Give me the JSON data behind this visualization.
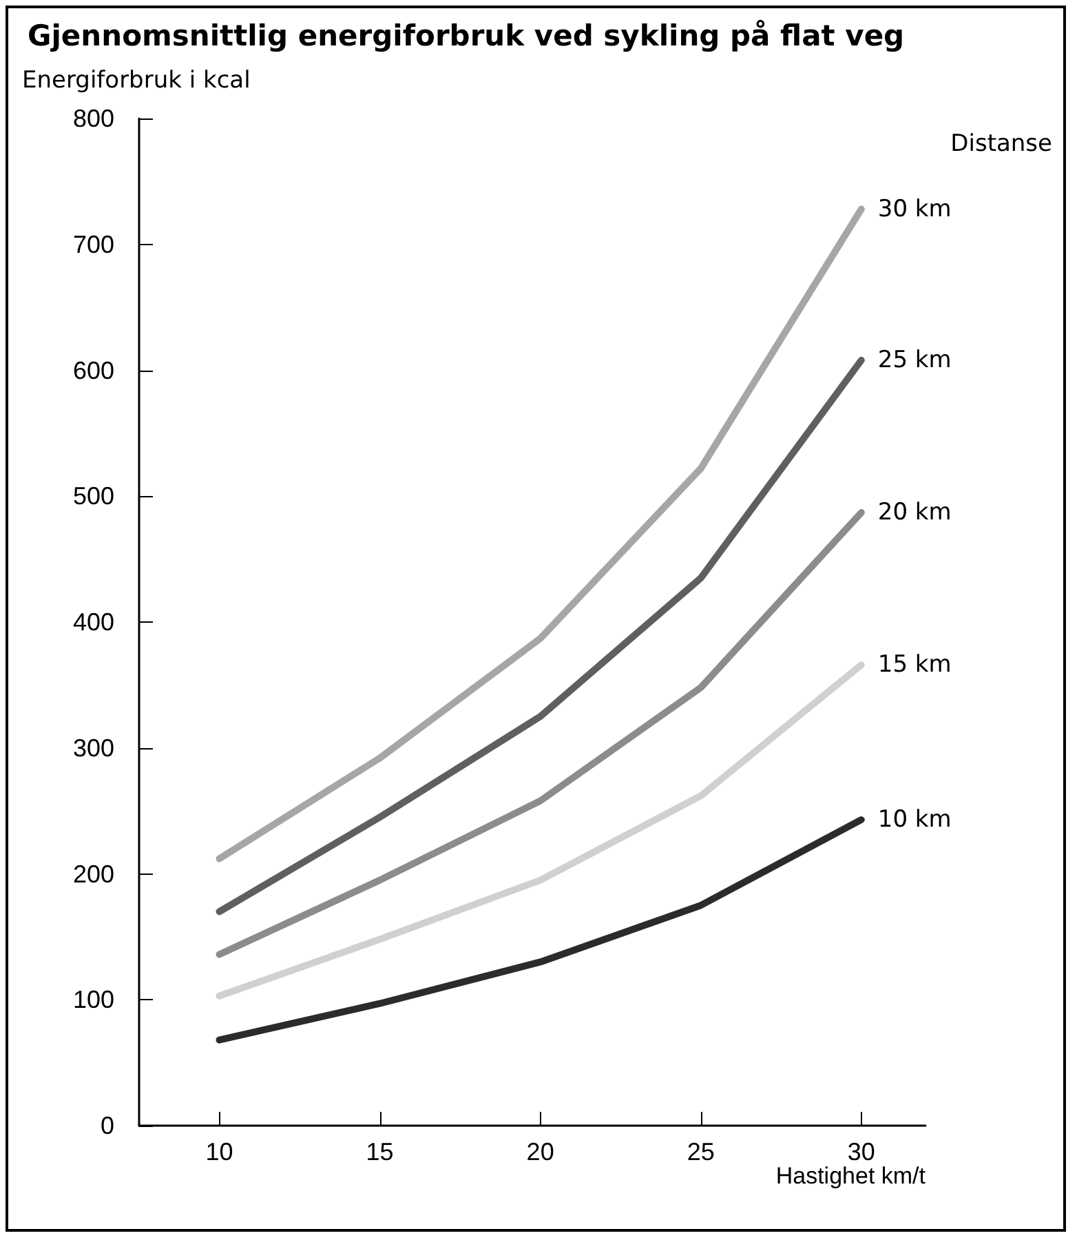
{
  "chart_data": {
    "type": "line",
    "title": "Gjennomsnittlig energiforbruk ved sykling på flat veg",
    "xlabel": "Hastighet km/t",
    "ylabel": "Energiforbruk i kcal",
    "legend_title": "Distanse",
    "x": [
      10,
      15,
      20,
      25,
      30
    ],
    "series": [
      {
        "name": "30 km",
        "color": "#a6a6a6",
        "values": [
          212,
          292,
          387,
          522,
          728
        ]
      },
      {
        "name": "25 km",
        "color": "#5f5f5f",
        "values": [
          170,
          245,
          325,
          435,
          608
        ]
      },
      {
        "name": "20 km",
        "color": "#8c8c8c",
        "values": [
          136,
          195,
          258,
          348,
          487
        ]
      },
      {
        "name": "15 km",
        "color": "#d0d0d0",
        "values": [
          103,
          148,
          195,
          262,
          366
        ]
      },
      {
        "name": "10 km",
        "color": "#2b2b2b",
        "values": [
          68,
          97,
          130,
          175,
          243
        ]
      }
    ],
    "xlim": [
      7.5,
      32
    ],
    "xticks": [
      10,
      15,
      20,
      25,
      30
    ],
    "ylim": [
      0,
      800
    ],
    "yticks": [
      0,
      100,
      200,
      300,
      400,
      500,
      600,
      700,
      800
    ],
    "grid": false,
    "legend": "right",
    "marker": "none",
    "line_style": "solid"
  }
}
